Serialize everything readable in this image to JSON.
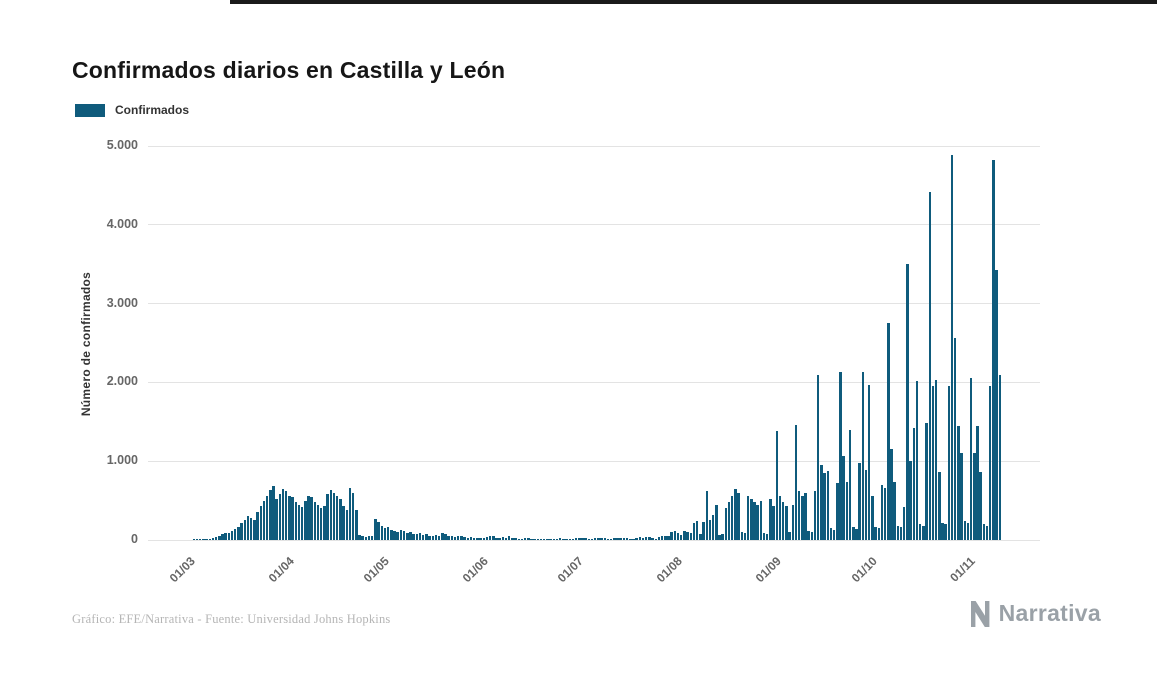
{
  "page": {
    "title": "Confirmados diarios en Castilla y León",
    "legend_label": "Confirmados",
    "source_text": "Gráfico: EFE/Narrativa - Fuente: Universidad Johns Hopkins",
    "brand_name": "Narrativa"
  },
  "colors": {
    "bar": "#0f5b7c",
    "grid": "#e3e3e3",
    "axis_text": "#666666",
    "title_text": "#161616",
    "footer_text": "#b5b5b5",
    "brand_gray": "#9aa1a7",
    "top_border": "#1a1a1a"
  },
  "chart_data": {
    "type": "bar",
    "title": "Confirmados diarios en Castilla y León",
    "xlabel": "",
    "ylabel": "Número de confirmados",
    "series_name": "Confirmados",
    "ylim": [
      0,
      5000
    ],
    "grid": true,
    "legend_position": "top-left",
    "y_ticks": [
      {
        "label": "0",
        "value": 0
      },
      {
        "label": "1.000",
        "value": 1000
      },
      {
        "label": "2.000",
        "value": 2000
      },
      {
        "label": "3.000",
        "value": 3000
      },
      {
        "label": "4.000",
        "value": 4000
      },
      {
        "label": "5.000",
        "value": 5000
      }
    ],
    "x_ticks": [
      {
        "label": "01/03",
        "index": 0
      },
      {
        "label": "01/04",
        "index": 31
      },
      {
        "label": "01/05",
        "index": 61
      },
      {
        "label": "01/06",
        "index": 92
      },
      {
        "label": "01/07",
        "index": 122
      },
      {
        "label": "01/08",
        "index": 153
      },
      {
        "label": "01/09",
        "index": 184
      },
      {
        "label": "01/10",
        "index": 214
      },
      {
        "label": "01/11",
        "index": 245
      }
    ],
    "lead_empty_slots": 12,
    "total_slots": 280,
    "values": [
      0,
      0,
      1,
      2,
      4,
      6,
      8,
      12,
      20,
      35,
      50,
      70,
      90,
      85,
      110,
      140,
      170,
      210,
      250,
      300,
      280,
      260,
      350,
      430,
      500,
      560,
      640,
      680,
      520,
      580,
      650,
      620,
      560,
      540,
      480,
      450,
      420,
      500,
      560,
      540,
      480,
      450,
      400,
      430,
      580,
      640,
      600,
      560,
      520,
      430,
      380,
      660,
      600,
      380,
      60,
      50,
      40,
      45,
      55,
      270,
      230,
      180,
      150,
      160,
      130,
      120,
      100,
      130,
      110,
      90,
      100,
      80,
      70,
      90,
      60,
      75,
      55,
      45,
      60,
      50,
      90,
      70,
      55,
      45,
      35,
      55,
      45,
      35,
      30,
      35,
      25,
      20,
      30,
      25,
      40,
      55,
      50,
      30,
      20,
      35,
      30,
      45,
      25,
      20,
      15,
      12,
      20,
      25,
      15,
      10,
      15,
      10,
      8,
      12,
      18,
      10,
      15,
      20,
      12,
      8,
      10,
      15,
      20,
      25,
      30,
      20,
      10,
      15,
      25,
      30,
      25,
      20,
      15,
      10,
      20,
      30,
      25,
      20,
      30,
      15,
      10,
      25,
      35,
      30,
      40,
      35,
      25,
      15,
      40,
      50,
      45,
      55,
      100,
      110,
      90,
      60,
      120,
      100,
      90,
      220,
      240,
      80,
      230,
      620,
      250,
      320,
      450,
      60,
      70,
      400,
      480,
      560,
      650,
      600,
      100,
      90,
      560,
      520,
      480,
      440,
      500,
      90,
      80,
      520,
      430,
      1380,
      560,
      480,
      430,
      100,
      450,
      1460,
      620,
      560,
      600,
      120,
      100,
      620,
      2100,
      950,
      850,
      880,
      150,
      130,
      720,
      2130,
      1070,
      740,
      1400,
      160,
      140,
      980,
      2130,
      890,
      1970,
      560,
      170,
      150,
      700,
      660,
      2760,
      1160,
      730,
      180,
      160,
      420,
      3500,
      1000,
      1420,
      2020,
      200,
      180,
      1480,
      4420,
      1950,
      2030,
      860,
      220,
      200,
      1960,
      4890,
      2560,
      1450,
      1100,
      240,
      220,
      2050,
      1100,
      1450,
      860,
      200,
      180,
      1950,
      4820,
      3430,
      2100
    ]
  }
}
